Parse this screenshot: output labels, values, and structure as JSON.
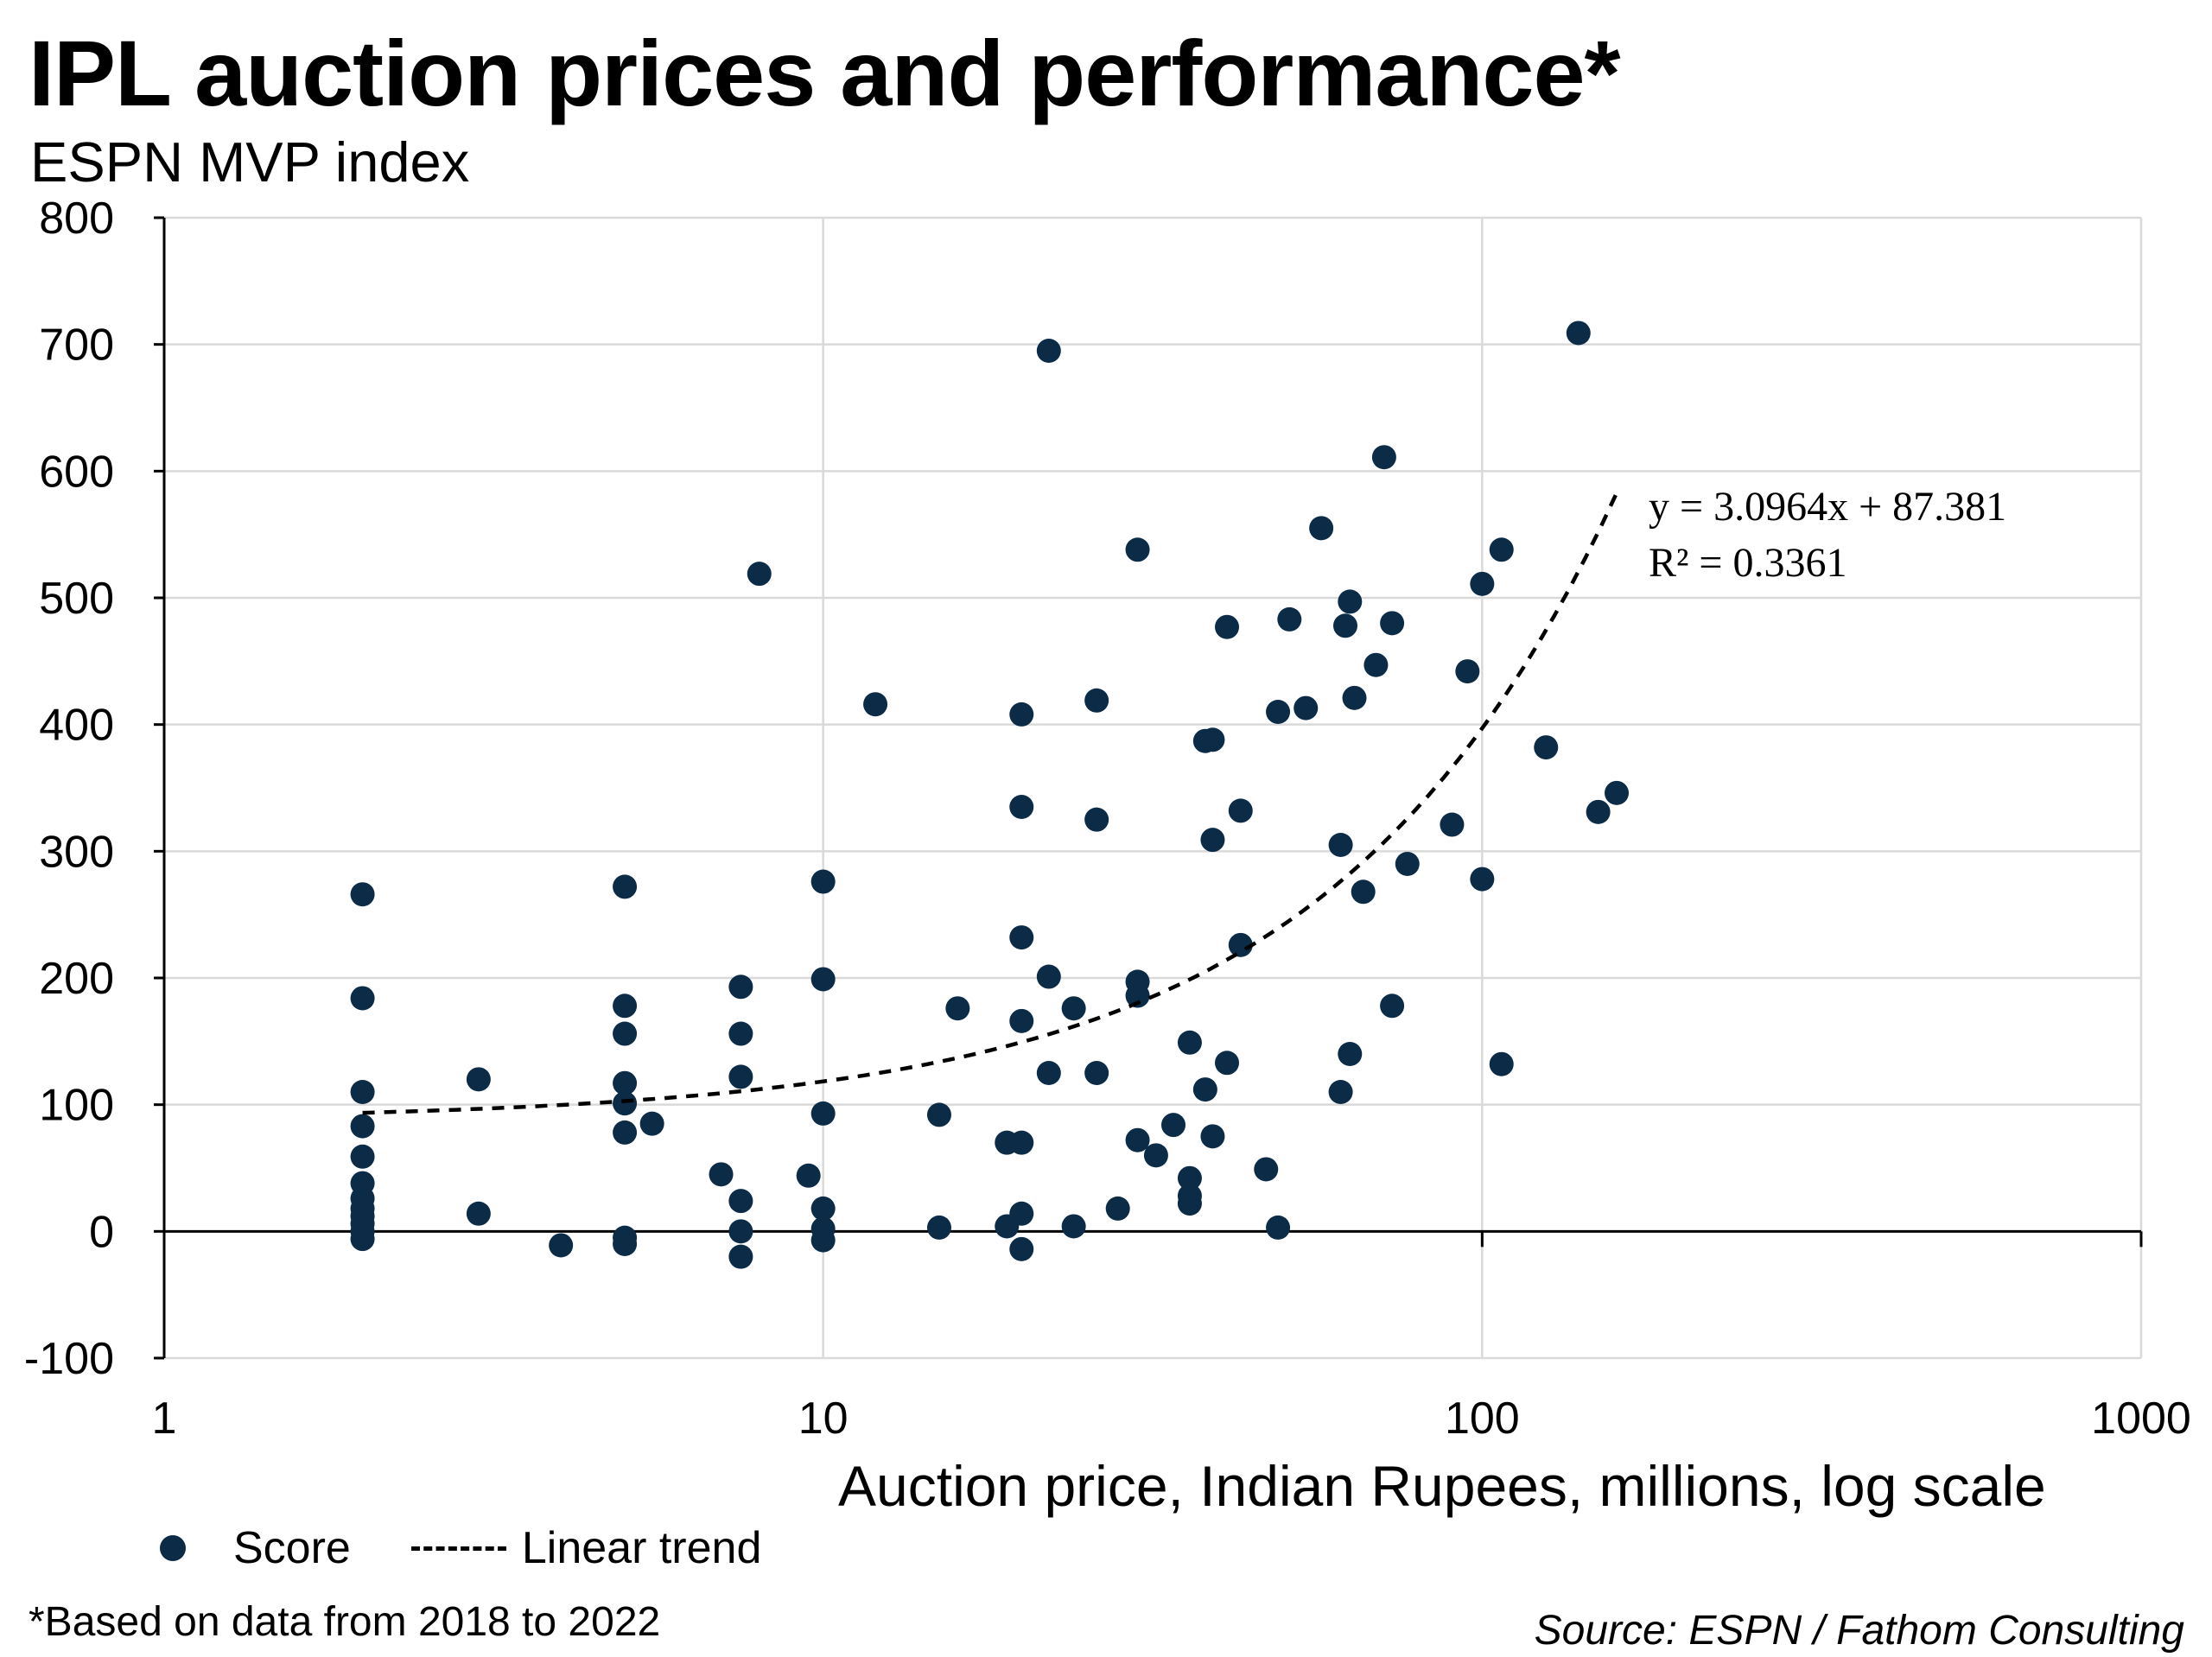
{
  "title": "IPL auction prices and performance*",
  "subtitle": "ESPN MVP index",
  "footnote": "*Based on data from 2018 to 2022",
  "source": "Source: ESPN / Fathom Consulting",
  "colors": {
    "points": "#0b2b47",
    "trend": "#000000",
    "grid": "#d9d9d9"
  },
  "chart_data": {
    "type": "scatter",
    "title": "IPL auction prices and performance*",
    "ylabel": "ESPN MVP index",
    "xlabel": "Auction price, Indian Rupees, millions, log scale",
    "xscale": "log",
    "xlim": [
      1,
      1000
    ],
    "ylim": [
      -100,
      800
    ],
    "xticks": [
      1,
      10,
      100,
      1000
    ],
    "xtick_labels": [
      "1",
      "10",
      "100",
      "1000"
    ],
    "yticks": [
      -100,
      0,
      100,
      200,
      300,
      400,
      500,
      600,
      700,
      800
    ],
    "ytick_labels": [
      "-100",
      "0",
      "100",
      "200",
      "300",
      "400",
      "500",
      "600",
      "700",
      "800"
    ],
    "grid": true,
    "legend": {
      "position": "bottom-left",
      "score_label": "Score",
      "trend_label": "Linear trend"
    },
    "annotation": {
      "equation": "y = 3.0964x + 87.381",
      "r2_label": "R² = 0.3361"
    },
    "trendline": {
      "slope": 3.0964,
      "intercept": 87.381,
      "x_range": [
        2,
        160
      ]
    },
    "series": [
      {
        "name": "Score",
        "points": [
          [
            2,
            266
          ],
          [
            2,
            184
          ],
          [
            2,
            110
          ],
          [
            2,
            83
          ],
          [
            2,
            59
          ],
          [
            2,
            38
          ],
          [
            2,
            26
          ],
          [
            2,
            18
          ],
          [
            2,
            12
          ],
          [
            2,
            6
          ],
          [
            2,
            0
          ],
          [
            2,
            -6
          ],
          [
            3,
            120
          ],
          [
            3,
            14
          ],
          [
            4,
            -11
          ],
          [
            5,
            272
          ],
          [
            5,
            178
          ],
          [
            5,
            156
          ],
          [
            5,
            117
          ],
          [
            5,
            101
          ],
          [
            5,
            78
          ],
          [
            5,
            -5
          ],
          [
            5,
            -10
          ],
          [
            5.5,
            85
          ],
          [
            7,
            45
          ],
          [
            7.5,
            193
          ],
          [
            7.5,
            156
          ],
          [
            7.5,
            122
          ],
          [
            7.5,
            24
          ],
          [
            7.5,
            0
          ],
          [
            7.5,
            -20
          ],
          [
            8,
            519
          ],
          [
            9.5,
            44
          ],
          [
            10,
            276
          ],
          [
            10,
            199
          ],
          [
            10,
            93
          ],
          [
            10,
            18
          ],
          [
            10,
            2
          ],
          [
            10,
            -7
          ],
          [
            12,
            416
          ],
          [
            15,
            92
          ],
          [
            15,
            3
          ],
          [
            16,
            176
          ],
          [
            19,
            70
          ],
          [
            19,
            4
          ],
          [
            20,
            408
          ],
          [
            20,
            335
          ],
          [
            20,
            232
          ],
          [
            20,
            166
          ],
          [
            20,
            70
          ],
          [
            20,
            14
          ],
          [
            20,
            -14
          ],
          [
            22,
            695
          ],
          [
            22,
            201
          ],
          [
            22,
            125
          ],
          [
            24,
            176
          ],
          [
            24,
            4
          ],
          [
            26,
            419
          ],
          [
            26,
            325
          ],
          [
            26,
            125
          ],
          [
            28,
            18
          ],
          [
            30,
            538
          ],
          [
            30,
            197
          ],
          [
            30,
            186
          ],
          [
            30,
            72
          ],
          [
            32,
            60
          ],
          [
            34,
            84
          ],
          [
            36,
            149
          ],
          [
            36,
            42
          ],
          [
            36,
            28
          ],
          [
            36,
            22
          ],
          [
            38,
            387
          ],
          [
            38,
            112
          ],
          [
            39,
            388
          ],
          [
            39,
            309
          ],
          [
            39,
            75
          ],
          [
            41,
            477
          ],
          [
            41,
            133
          ],
          [
            43,
            332
          ],
          [
            43,
            226
          ],
          [
            47,
            49
          ],
          [
            49,
            410
          ],
          [
            49,
            3
          ],
          [
            51,
            483
          ],
          [
            54,
            413
          ],
          [
            57,
            555
          ],
          [
            61,
            305
          ],
          [
            61,
            110
          ],
          [
            62,
            478
          ],
          [
            63,
            497
          ],
          [
            63,
            140
          ],
          [
            64,
            421
          ],
          [
            66,
            268
          ],
          [
            69,
            447
          ],
          [
            71,
            611
          ],
          [
            73,
            480
          ],
          [
            73,
            178
          ],
          [
            77,
            290
          ],
          [
            90,
            321
          ],
          [
            95,
            442
          ],
          [
            100,
            511
          ],
          [
            100,
            278
          ],
          [
            107,
            538
          ],
          [
            107,
            132
          ],
          [
            125,
            382
          ],
          [
            140,
            709
          ],
          [
            150,
            331
          ],
          [
            160,
            346
          ]
        ]
      }
    ]
  }
}
